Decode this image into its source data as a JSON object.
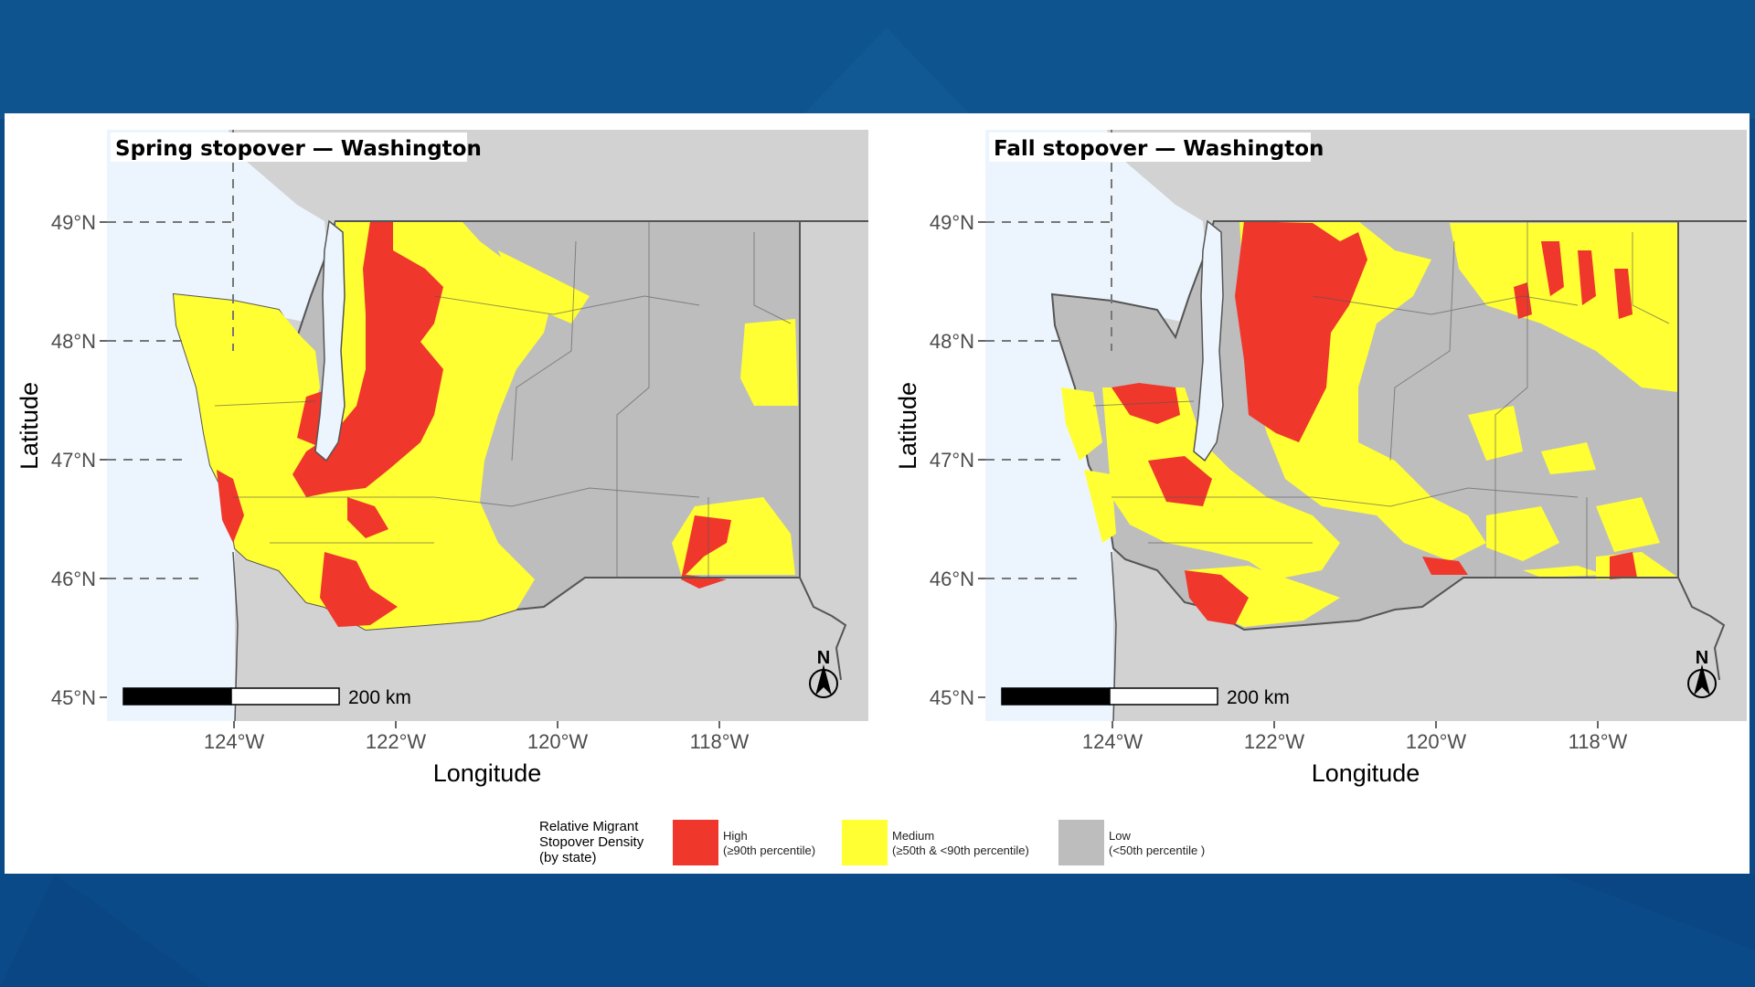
{
  "maps": [
    {
      "title": "Spring stopover — Washington",
      "ylabel": "Latitude",
      "xlabel": "Longitude",
      "lat_ticks": [
        "49°N",
        "48°N",
        "47°N",
        "46°N",
        "45°N"
      ],
      "lon_ticks": [
        "124°W",
        "122°W",
        "120°W",
        "118°W"
      ],
      "scale_label": "200 km",
      "north_label": "N"
    },
    {
      "title": "Fall stopover — Washington",
      "ylabel": "Latitude",
      "xlabel": "Longitude",
      "lat_ticks": [
        "49°N",
        "48°N",
        "47°N",
        "46°N",
        "45°N"
      ],
      "lon_ticks": [
        "124°W",
        "122°W",
        "120°W",
        "118°W"
      ],
      "scale_label": "200 km",
      "north_label": "N"
    }
  ],
  "legend": {
    "title": "Relative Migrant\nStopover Density\n(by state)",
    "items": [
      {
        "label": "High\n(≥90th percentile)",
        "color": "#f0372c"
      },
      {
        "label": "Medium\n(≥50th & <90th percentile)",
        "color": "#ffff33"
      },
      {
        "label": "Low\n(<50th percentile )",
        "color": "#bdbdbd"
      }
    ]
  },
  "colors": {
    "background": "#0d4f8f",
    "water": "#ecf5fd",
    "land_outside": "#d2d2d2",
    "high": "#f0372c",
    "medium": "#ffff33",
    "low": "#bdbdbd"
  }
}
